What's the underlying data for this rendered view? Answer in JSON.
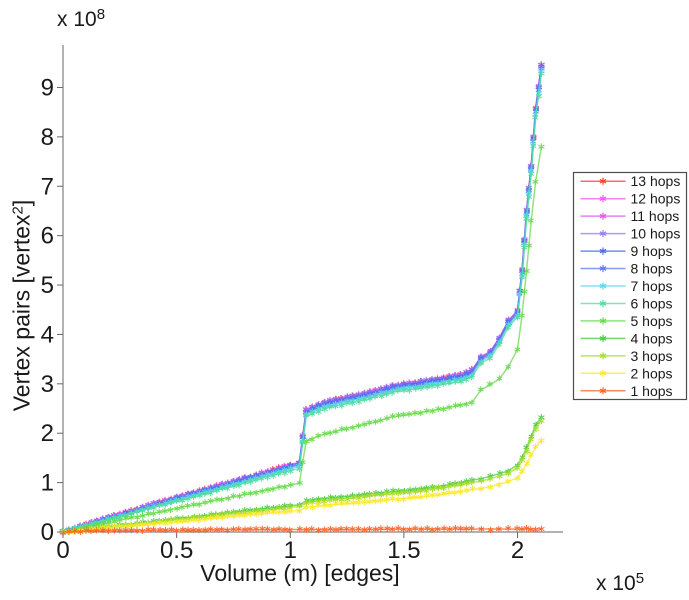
{
  "figure": {
    "background": "#ffffff",
    "x_label": "Volume (m) [edges]",
    "y_label": {
      "pre": "Vertex pairs [vertex",
      "exp": "2",
      "post": "]"
    },
    "y_multiplier": {
      "base": "x 10",
      "exp": "8"
    },
    "x_multiplier": {
      "base": "x 10",
      "exp": "5"
    }
  },
  "legend": {
    "border_color": "#4d4d4d",
    "background": "#ffffff",
    "position": "right-outside"
  },
  "chart_data": {
    "type": "line",
    "title": "",
    "xlabel": "Volume (m) [edges]",
    "ylabel": "Vertex pairs [vertex^2]",
    "x_unit_multiplier": "1e5",
    "y_unit_multiplier": "1e8",
    "xlim": [
      0,
      2.2
    ],
    "ylim": [
      0,
      9.86
    ],
    "x_ticks": [
      0,
      0.5,
      1,
      1.5,
      2
    ],
    "x_tick_labels": [
      "0",
      "0.5",
      "1",
      "1.5",
      "2"
    ],
    "y_ticks": [
      0,
      1,
      2,
      3,
      4,
      5,
      6,
      7,
      8,
      9
    ],
    "y_tick_labels": [
      "0",
      "1",
      "2",
      "3",
      "4",
      "5",
      "6",
      "7",
      "8",
      "9"
    ],
    "grid": false,
    "marker": "asterisk",
    "legend_position": "right-outside",
    "x": [
      0,
      0.1,
      0.2,
      0.3,
      0.4,
      0.5,
      0.6,
      0.7,
      0.8,
      0.9,
      1.0,
      1.04,
      1.07,
      1.15,
      1.25,
      1.35,
      1.45,
      1.55,
      1.65,
      1.75,
      1.8,
      1.84,
      1.88,
      1.92,
      1.96,
      2.0,
      2.02,
      2.04,
      2.06,
      2.08,
      2.105
    ],
    "series": [
      {
        "name": "13 hops",
        "color": "#fa3c28",
        "values": [
          0,
          0.15,
          0.29,
          0.43,
          0.57,
          0.7,
          0.83,
          0.96,
          1.09,
          1.22,
          1.36,
          1.41,
          2.47,
          2.63,
          2.73,
          2.83,
          2.96,
          3.03,
          3.1,
          3.18,
          3.28,
          3.55,
          3.65,
          3.93,
          4.28,
          4.48,
          5.31,
          6.51,
          7.41,
          8.58,
          9.46
        ]
      },
      {
        "name": "12 hops",
        "color": "#f655f0",
        "values": [
          0,
          0.15,
          0.29,
          0.43,
          0.57,
          0.7,
          0.83,
          0.96,
          1.09,
          1.22,
          1.36,
          1.41,
          2.47,
          2.63,
          2.73,
          2.83,
          2.96,
          3.03,
          3.1,
          3.18,
          3.28,
          3.55,
          3.65,
          3.93,
          4.28,
          4.48,
          5.31,
          6.51,
          7.41,
          8.58,
          9.46
        ]
      },
      {
        "name": "11 hops",
        "color": "#e256ee",
        "values": [
          0,
          0.15,
          0.29,
          0.43,
          0.57,
          0.7,
          0.83,
          0.96,
          1.09,
          1.22,
          1.36,
          1.41,
          2.47,
          2.63,
          2.73,
          2.83,
          2.96,
          3.03,
          3.1,
          3.18,
          3.28,
          3.55,
          3.65,
          3.93,
          4.28,
          4.48,
          5.31,
          6.51,
          7.41,
          8.58,
          9.46
        ]
      },
      {
        "name": "10 hops",
        "color": "#9579f2",
        "values": [
          0,
          0.15,
          0.29,
          0.43,
          0.57,
          0.7,
          0.83,
          0.96,
          1.09,
          1.22,
          1.36,
          1.41,
          2.47,
          2.63,
          2.73,
          2.83,
          2.96,
          3.03,
          3.1,
          3.18,
          3.28,
          3.55,
          3.65,
          3.93,
          4.28,
          4.48,
          5.31,
          6.51,
          7.41,
          8.58,
          9.46
        ]
      },
      {
        "name": "9 hops",
        "color": "#4a67ee",
        "values": [
          0,
          0.14,
          0.28,
          0.41,
          0.55,
          0.68,
          0.81,
          0.94,
          1.07,
          1.2,
          1.33,
          1.38,
          2.44,
          2.6,
          2.7,
          2.8,
          2.93,
          3.0,
          3.07,
          3.15,
          3.25,
          3.52,
          3.62,
          3.9,
          4.25,
          4.45,
          5.28,
          6.48,
          7.38,
          8.55,
          9.42
        ]
      },
      {
        "name": "8 hops",
        "color": "#5b7af0",
        "values": [
          0,
          0.13,
          0.27,
          0.4,
          0.53,
          0.66,
          0.79,
          0.92,
          1.05,
          1.18,
          1.31,
          1.36,
          2.41,
          2.57,
          2.67,
          2.77,
          2.9,
          2.97,
          3.04,
          3.12,
          3.22,
          3.49,
          3.59,
          3.87,
          4.22,
          4.42,
          5.24,
          6.44,
          7.34,
          8.5,
          9.38
        ]
      },
      {
        "name": "7 hops",
        "color": "#58d8f0",
        "values": [
          0,
          0.13,
          0.26,
          0.38,
          0.51,
          0.64,
          0.77,
          0.9,
          1.02,
          1.15,
          1.28,
          1.33,
          2.38,
          2.54,
          2.64,
          2.74,
          2.87,
          2.94,
          3.01,
          3.09,
          3.19,
          3.46,
          3.56,
          3.84,
          4.19,
          4.39,
          5.2,
          6.4,
          7.3,
          8.45,
          9.33
        ]
      },
      {
        "name": "6 hops",
        "color": "#50dc9e",
        "values": [
          0,
          0.12,
          0.25,
          0.37,
          0.5,
          0.62,
          0.74,
          0.87,
          0.99,
          1.12,
          1.24,
          1.29,
          2.34,
          2.5,
          2.6,
          2.7,
          2.83,
          2.9,
          2.97,
          3.05,
          3.15,
          3.42,
          3.52,
          3.8,
          4.15,
          4.35,
          5.15,
          6.35,
          7.25,
          8.4,
          9.28
        ]
      },
      {
        "name": "5 hops",
        "color": "#66da4a",
        "values": [
          0,
          0.1,
          0.19,
          0.29,
          0.38,
          0.48,
          0.57,
          0.67,
          0.76,
          0.86,
          0.95,
          0.99,
          1.85,
          1.98,
          2.1,
          2.2,
          2.33,
          2.4,
          2.48,
          2.57,
          2.63,
          2.88,
          2.98,
          3.1,
          3.35,
          3.7,
          4.4,
          5.3,
          6.3,
          7.1,
          7.8
        ]
      },
      {
        "name": "4 hops",
        "color": "#46cc3e",
        "values": [
          0,
          0.05,
          0.11,
          0.16,
          0.21,
          0.27,
          0.32,
          0.37,
          0.43,
          0.48,
          0.53,
          0.55,
          0.63,
          0.68,
          0.72,
          0.77,
          0.82,
          0.86,
          0.92,
          1.0,
          1.05,
          1.08,
          1.13,
          1.18,
          1.24,
          1.36,
          1.51,
          1.71,
          1.94,
          2.17,
          2.32
        ]
      },
      {
        "name": "3 hops",
        "color": "#a6dc28",
        "values": [
          0,
          0.05,
          0.1,
          0.15,
          0.2,
          0.25,
          0.3,
          0.35,
          0.4,
          0.45,
          0.5,
          0.52,
          0.59,
          0.64,
          0.68,
          0.73,
          0.78,
          0.82,
          0.88,
          0.96,
          1.0,
          1.03,
          1.08,
          1.13,
          1.19,
          1.3,
          1.45,
          1.65,
          1.88,
          2.1,
          2.25
        ]
      },
      {
        "name": "2 hops",
        "color": "#fae828",
        "values": [
          0,
          0.04,
          0.09,
          0.13,
          0.17,
          0.21,
          0.25,
          0.3,
          0.34,
          0.38,
          0.42,
          0.44,
          0.5,
          0.54,
          0.58,
          0.62,
          0.66,
          0.7,
          0.75,
          0.82,
          0.86,
          0.88,
          0.92,
          0.97,
          1.02,
          1.1,
          1.22,
          1.38,
          1.55,
          1.72,
          1.85
        ]
      },
      {
        "name": "1 hops",
        "color": "#fa6428",
        "values": [
          0,
          0.02,
          0.03,
          0.03,
          0.04,
          0.04,
          0.04,
          0.05,
          0.05,
          0.05,
          0.05,
          0.05,
          0.05,
          0.05,
          0.05,
          0.05,
          0.06,
          0.06,
          0.06,
          0.06,
          0.06,
          0.06,
          0.06,
          0.06,
          0.06,
          0.06,
          0.06,
          0.06,
          0.06,
          0.06,
          0.06
        ]
      }
    ]
  }
}
